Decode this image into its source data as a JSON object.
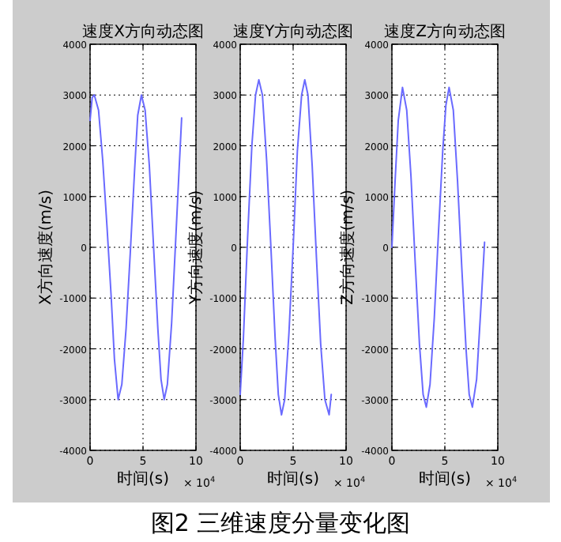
{
  "chart_data": [
    {
      "type": "line",
      "title": "速度X方向动态图",
      "xlabel": "时间(s)",
      "ylabel": "X方向速度(m/s)",
      "annotations": [
        "× 10$^{4}$"
      ],
      "xlim": [
        0,
        10
      ],
      "xticks": [
        0,
        5,
        10
      ],
      "ylim": [
        -4000,
        4000
      ],
      "yticks": [
        -4000,
        -3000,
        -2000,
        -1000,
        0,
        1000,
        2000,
        3000,
        4000
      ],
      "grid": true,
      "line_style": "solid",
      "series": [
        {
          "color": "#6a6aff",
          "x": [
            0,
            0.2,
            0.4,
            0.8,
            1.2,
            1.6,
            2.0,
            2.3,
            2.65,
            3.0,
            3.4,
            3.8,
            4.2,
            4.5,
            4.85,
            5.2,
            5.6,
            6.0,
            6.4,
            6.7,
            7.0,
            7.3,
            7.7,
            8.1,
            8.4,
            8.65
          ],
          "values": [
            2500,
            2950,
            3000,
            2700,
            1700,
            400,
            -1000,
            -2200,
            -3000,
            -2700,
            -1600,
            -100,
            1500,
            2600,
            3000,
            2700,
            1600,
            0,
            -1600,
            -2600,
            -3000,
            -2700,
            -1500,
            200,
            1500,
            2550
          ]
        }
      ]
    },
    {
      "type": "line",
      "title": "速度Y方向动态图",
      "xlabel": "时间(s)",
      "ylabel": "Y方向速度(m/s)",
      "annotations": [
        "× 10$^{4}$",
        "图2  三维速度分量变化图"
      ],
      "xlim": [
        0,
        10
      ],
      "xticks": [
        0,
        5,
        10
      ],
      "ylim": [
        -4000,
        4000
      ],
      "yticks": [
        -4000,
        -3000,
        -2000,
        -1000,
        0,
        1000,
        2000,
        3000,
        4000
      ],
      "grid": true,
      "line_style": "solid",
      "series": [
        {
          "color": "#6a6aff",
          "x": [
            0,
            0.3,
            0.7,
            1.1,
            1.45,
            1.76,
            2.1,
            2.5,
            2.9,
            3.3,
            3.6,
            3.9,
            4.2,
            4.6,
            5.0,
            5.4,
            5.8,
            6.1,
            6.4,
            6.8,
            7.2,
            7.6,
            8.0,
            8.4,
            8.6
          ],
          "values": [
            -2900,
            -1800,
            200,
            2000,
            3000,
            3300,
            3000,
            1700,
            0,
            -1800,
            -2900,
            -3300,
            -3000,
            -1700,
            0,
            1900,
            3000,
            3300,
            3000,
            1600,
            -200,
            -1900,
            -3000,
            -3300,
            -2900
          ]
        }
      ]
    },
    {
      "type": "line",
      "title": "速度Z方向动态图",
      "xlabel": "时间(s)",
      "ylabel": "Z方向速度(m/s)",
      "annotations": [
        "× 10$^{4}$"
      ],
      "xlim": [
        0,
        10
      ],
      "xticks": [
        0,
        5,
        10
      ],
      "ylim": [
        -4000,
        4000
      ],
      "yticks": [
        -4000,
        -3000,
        -2000,
        -1000,
        0,
        1000,
        2000,
        3000,
        4000
      ],
      "grid": true,
      "line_style": "solid",
      "series": [
        {
          "color": "#6a6aff",
          "x": [
            0,
            0.3,
            0.6,
            1.0,
            1.4,
            1.8,
            2.2,
            2.6,
            2.95,
            3.25,
            3.6,
            4.0,
            4.4,
            4.8,
            5.1,
            5.4,
            5.8,
            6.2,
            6.6,
            7.0,
            7.3,
            7.6,
            8.0,
            8.4,
            8.75
          ],
          "values": [
            0,
            1300,
            2500,
            3150,
            2700,
            1400,
            -300,
            -1900,
            -2900,
            -3150,
            -2700,
            -1400,
            300,
            1900,
            2800,
            3150,
            2700,
            1300,
            -400,
            -2000,
            -2900,
            -3150,
            -2600,
            -1200,
            100
          ]
        }
      ]
    }
  ]
}
